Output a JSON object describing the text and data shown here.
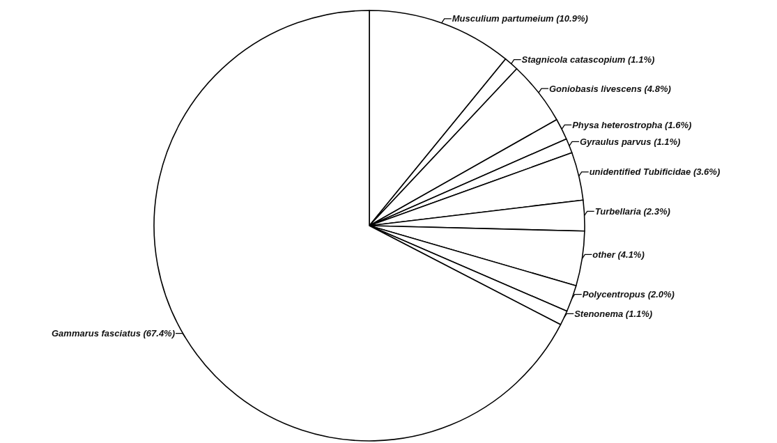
{
  "chart_data": {
    "type": "pie",
    "categories": [
      "Musculium partumeium",
      "Stagnicola catascopium",
      "Goniobasis livescens",
      "Physa heterostropha",
      "Gyraulus parvus",
      "unidentified Tubificidae",
      "Turbellaria",
      "other",
      "Polycentropus",
      "Stenonema",
      "Gammarus fasciatus"
    ],
    "values": [
      10.9,
      1.1,
      4.8,
      1.6,
      1.1,
      3.6,
      2.3,
      4.1,
      2.0,
      1.1,
      67.4
    ],
    "value_labels": [
      "(10.9%)",
      "(1.1%)",
      "(4.8%)",
      "(1.6%)",
      "(1.1%)",
      "(3.6%)",
      "(2.3%)",
      "(4.1%)",
      "(2.0%)",
      "(1.1%)",
      "(67.4%)"
    ],
    "colors": [
      "#ffffff",
      "#ffffff",
      "#ffffff",
      "#ffffff",
      "#ffffff",
      "#ffffff",
      "#ffffff",
      "#ffffff",
      "#ffffff",
      "#ffffff",
      "#ffffff"
    ]
  }
}
